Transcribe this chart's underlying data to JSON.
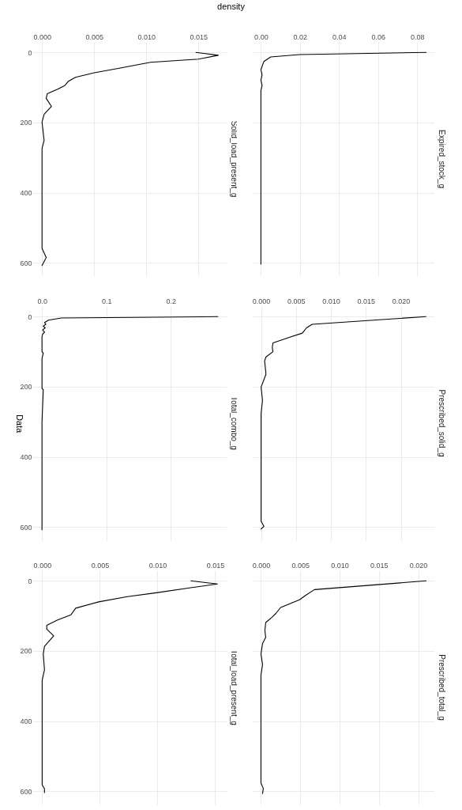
{
  "chart_data": [
    {
      "type": "line",
      "title": "Solid_load_present_g",
      "xlabel": "density",
      "color": "#000000",
      "grid": true,
      "ylim": [
        638,
        -30
      ],
      "yticks": [
        0,
        200,
        400,
        600
      ],
      "xlim": [
        -0.00085,
        0.0177
      ],
      "xticks": [
        {
          "value": 0,
          "label": "0.000"
        },
        {
          "value": 0.005,
          "label": "0.005"
        },
        {
          "value": 0.01,
          "label": "0.010"
        },
        {
          "value": 0.015,
          "label": "0.015"
        }
      ],
      "values": [
        0,
        8,
        19,
        28,
        45,
        58,
        71,
        83,
        94,
        105,
        118,
        131,
        154,
        176,
        199,
        251,
        274,
        379,
        559,
        585,
        608
      ],
      "x": [
        0.01475,
        0.0169,
        0.015,
        0.0104,
        0.0074,
        0.005,
        0.0032,
        0.0025,
        0.0022,
        0.0015,
        0.0005,
        0.0004,
        0.0009,
        0.0002,
        0,
        0.0002,
        0,
        0,
        0,
        0.0004,
        0
      ]
    },
    {
      "type": "line",
      "title": "Expired_stock_g",
      "color": "#000000",
      "grid": true,
      "tick_labels": "x",
      "ylim": [
        638,
        -30
      ],
      "yticks": [
        0,
        200,
        400,
        600
      ],
      "xlim": [
        -0.0042,
        0.0888
      ],
      "xticks": [
        {
          "value": 0,
          "label": "0.00"
        },
        {
          "value": 0.02,
          "label": "0.02"
        },
        {
          "value": 0.04,
          "label": "0.04"
        },
        {
          "value": 0.06,
          "label": "0.06"
        },
        {
          "value": 0.08,
          "label": "0.08"
        }
      ],
      "values": [
        0,
        6,
        13,
        26,
        49,
        64,
        79,
        94,
        109,
        150,
        300,
        450,
        604
      ],
      "x": [
        0.0846,
        0.0198,
        0.005,
        0.0015,
        0,
        0.0006,
        0,
        0.0006,
        0,
        0,
        0,
        0,
        0
      ]
    },
    {
      "type": "line",
      "title": "Total_combo_g",
      "ylabel": "Data",
      "color": "#000000",
      "grid": true,
      "ylim": [
        638,
        -30
      ],
      "yticks": [
        0,
        200,
        400,
        600
      ],
      "xlim": [
        -0.0137,
        0.2867
      ],
      "xticks": [
        {
          "value": 0,
          "label": "0.0"
        },
        {
          "value": 0.1,
          "label": "0.1"
        },
        {
          "value": 0.2,
          "label": "0.2"
        }
      ],
      "values": [
        0,
        4,
        10,
        17,
        22,
        27,
        32,
        38,
        44,
        50,
        58,
        100,
        104,
        120,
        160,
        205,
        208,
        300,
        450,
        608
      ],
      "x": [
        0.273,
        0.03,
        0.01,
        0.004,
        0.006,
        0.002,
        0.005,
        0.001,
        0.004,
        0.001,
        0,
        0,
        0.002,
        0,
        0,
        0,
        0.002,
        0,
        0,
        0
      ]
    },
    {
      "type": "line",
      "title": "Prescribed_solid_g",
      "color": "#000000",
      "grid": true,
      "tick_labels": "x",
      "ylim": [
        638,
        -30
      ],
      "yticks": [
        0,
        200,
        400,
        600
      ],
      "xlim": [
        -0.0012,
        0.0248
      ],
      "xticks": [
        {
          "value": 0,
          "label": "0.000"
        },
        {
          "value": 0.005,
          "label": "0.005"
        },
        {
          "value": 0.01,
          "label": "0.010"
        },
        {
          "value": 0.015,
          "label": "0.015"
        },
        {
          "value": 0.02,
          "label": "0.020"
        }
      ],
      "values": [
        0,
        22,
        32,
        47,
        58,
        75,
        88,
        100,
        115,
        126,
        164,
        201,
        239,
        276,
        584,
        598,
        606
      ],
      "x": [
        0.0236,
        0.0073,
        0.0065,
        0.0059,
        0.0042,
        0.0017,
        0.0016,
        0.0017,
        0.0007,
        0.0005,
        0.0007,
        0,
        0.0002,
        0,
        0,
        0.0004,
        0
      ]
    },
    {
      "type": "line",
      "title": "Total_load_present_g",
      "color": "#000000",
      "grid": true,
      "ylim": [
        638,
        -30
      ],
      "yticks": [
        0,
        200,
        400,
        600
      ],
      "xlim": [
        -0.00078,
        0.016
      ],
      "xticks": [
        {
          "value": 0,
          "label": "0.000"
        },
        {
          "value": 0.005,
          "label": "0.005"
        },
        {
          "value": 0.01,
          "label": "0.010"
        },
        {
          "value": 0.015,
          "label": "0.015"
        }
      ],
      "values": [
        0,
        9,
        19,
        34,
        45,
        60,
        78,
        97,
        112,
        127,
        138,
        157,
        187,
        209,
        254,
        284,
        582,
        593,
        604
      ],
      "x": [
        0.0129,
        0.0152,
        0.013,
        0.0099,
        0.0074,
        0.0049,
        0.0029,
        0.0025,
        0.0013,
        0.0004,
        0.0004,
        0.001,
        0.0002,
        0.0001,
        0.0002,
        0,
        0,
        0.0002,
        0.0002
      ]
    },
    {
      "type": "line",
      "title": "Prescribed_total_g",
      "color": "#000000",
      "grid": true,
      "tick_labels": "x",
      "ylim": [
        638,
        -30
      ],
      "yticks": [
        0,
        200,
        400,
        600
      ],
      "xlim": [
        -0.00105,
        0.02205
      ],
      "xticks": [
        {
          "value": 0,
          "label": "0.000"
        },
        {
          "value": 0.005,
          "label": "0.005"
        },
        {
          "value": 0.01,
          "label": "0.010"
        },
        {
          "value": 0.015,
          "label": "0.015"
        },
        {
          "value": 0.02,
          "label": "0.020"
        }
      ],
      "values": [
        0,
        25,
        41,
        54,
        76,
        93,
        104,
        119,
        142,
        161,
        179,
        209,
        239,
        269,
        577,
        592,
        607
      ],
      "x": [
        0.021,
        0.0068,
        0.0057,
        0.0049,
        0.0025,
        0.0019,
        0.0014,
        0.0006,
        0.0005,
        0.0006,
        0.0002,
        0,
        0.0002,
        0,
        0,
        0.0003,
        0.0002
      ]
    }
  ]
}
